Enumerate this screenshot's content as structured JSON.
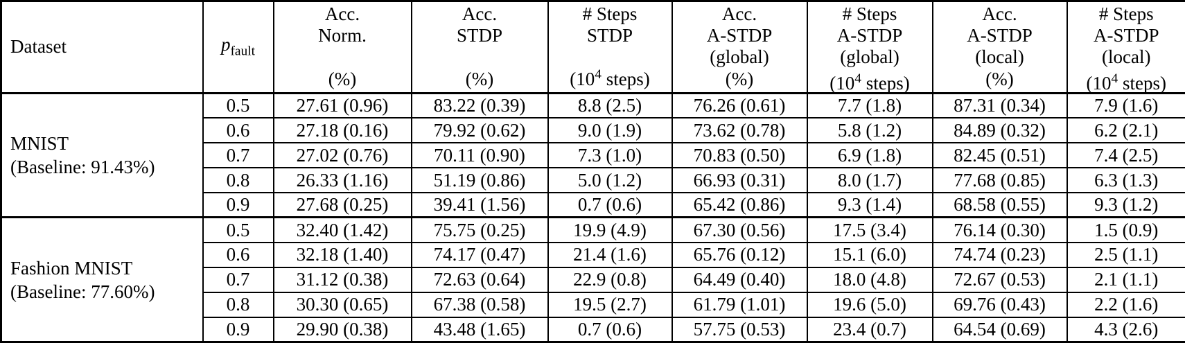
{
  "colors": {
    "text": "#000000",
    "background": "#ffffff",
    "border": "#000000"
  },
  "table": {
    "columns": [
      {
        "id": "dataset",
        "header_lines": [
          "Dataset"
        ],
        "unit": ""
      },
      {
        "id": "p_fault",
        "header_math": {
          "base": "p",
          "sub": "fault"
        },
        "unit": ""
      },
      {
        "id": "acc_norm",
        "header_lines": [
          "Acc.",
          "Norm."
        ],
        "unit": "(%)"
      },
      {
        "id": "acc_stdp",
        "header_lines": [
          "Acc.",
          "STDP"
        ],
        "unit": "(%)"
      },
      {
        "id": "steps_stdp",
        "header_lines": [
          "# Steps",
          "STDP"
        ],
        "unit": "(10^4 steps)"
      },
      {
        "id": "acc_astdp_global",
        "header_lines": [
          "Acc.",
          "A-STDP",
          "(global)"
        ],
        "unit": "(%)"
      },
      {
        "id": "steps_astdp_global",
        "header_lines": [
          "# Steps",
          "A-STDP",
          "(global)"
        ],
        "unit": "(10^4 steps)"
      },
      {
        "id": "acc_astdp_local",
        "header_lines": [
          "Acc.",
          "A-STDP",
          "(local)"
        ],
        "unit": "(%)"
      },
      {
        "id": "steps_astdp_local",
        "header_lines": [
          "# Steps",
          "A-STDP",
          "(local)"
        ],
        "unit": "(10^4 steps)"
      }
    ],
    "sections": [
      {
        "dataset_lines": [
          "MNIST",
          "(Baseline: 91.43%)"
        ],
        "rows": [
          {
            "p_fault": "0.5",
            "acc_norm": "27.61 (0.96)",
            "acc_stdp": "83.22 (0.39)",
            "steps_stdp": "8.8 (2.5)",
            "acc_astdp_global": "76.26 (0.61)",
            "steps_astdp_global": "7.7 (1.8)",
            "acc_astdp_local": "87.31 (0.34)",
            "steps_astdp_local": "7.9 (1.6)"
          },
          {
            "p_fault": "0.6",
            "acc_norm": "27.18 (0.16)",
            "acc_stdp": "79.92 (0.62)",
            "steps_stdp": "9.0 (1.9)",
            "acc_astdp_global": "73.62 (0.78)",
            "steps_astdp_global": "5.8 (1.2)",
            "acc_astdp_local": "84.89 (0.32)",
            "steps_astdp_local": "6.2 (2.1)"
          },
          {
            "p_fault": "0.7",
            "acc_norm": "27.02 (0.76)",
            "acc_stdp": "70.11 (0.90)",
            "steps_stdp": "7.3 (1.0)",
            "acc_astdp_global": "70.83 (0.50)",
            "steps_astdp_global": "6.9 (1.8)",
            "acc_astdp_local": "82.45 (0.51)",
            "steps_astdp_local": "7.4 (2.5)"
          },
          {
            "p_fault": "0.8",
            "acc_norm": "26.33 (1.16)",
            "acc_stdp": "51.19 (0.86)",
            "steps_stdp": "5.0 (1.2)",
            "acc_astdp_global": "66.93 (0.31)",
            "steps_astdp_global": "8.0 (1.7)",
            "acc_astdp_local": "77.68 (0.85)",
            "steps_astdp_local": "6.3 (1.3)"
          },
          {
            "p_fault": "0.9",
            "acc_norm": "27.68 (0.25)",
            "acc_stdp": "39.41 (1.56)",
            "steps_stdp": "0.7 (0.6)",
            "acc_astdp_global": "65.42 (0.86)",
            "steps_astdp_global": "9.3 (1.4)",
            "acc_astdp_local": "68.58 (0.55)",
            "steps_astdp_local": "9.3 (1.2)"
          }
        ]
      },
      {
        "dataset_lines": [
          "Fashion MNIST",
          "(Baseline: 77.60%)"
        ],
        "rows": [
          {
            "p_fault": "0.5",
            "acc_norm": "32.40 (1.42)",
            "acc_stdp": "75.75 (0.25)",
            "steps_stdp": "19.9 (4.9)",
            "acc_astdp_global": "67.30 (0.56)",
            "steps_astdp_global": "17.5 (3.4)",
            "acc_astdp_local": "76.14 (0.30)",
            "steps_astdp_local": "1.5 (0.9)"
          },
          {
            "p_fault": "0.6",
            "acc_norm": "32.18 (1.40)",
            "acc_stdp": "74.17 (0.47)",
            "steps_stdp": "21.4 (1.6)",
            "acc_astdp_global": "65.76 (0.12)",
            "steps_astdp_global": "15.1 (6.0)",
            "acc_astdp_local": "74.74 (0.23)",
            "steps_astdp_local": "2.5 (1.1)"
          },
          {
            "p_fault": "0.7",
            "acc_norm": "31.12 (0.38)",
            "acc_stdp": "72.63 (0.64)",
            "steps_stdp": "22.9 (0.8)",
            "acc_astdp_global": "64.49 (0.40)",
            "steps_astdp_global": "18.0 (4.8)",
            "acc_astdp_local": "72.67 (0.53)",
            "steps_astdp_local": "2.1 (1.1)"
          },
          {
            "p_fault": "0.8",
            "acc_norm": "30.30 (0.65)",
            "acc_stdp": "67.38 (0.58)",
            "steps_stdp": "19.5 (2.7)",
            "acc_astdp_global": "61.79 (1.01)",
            "steps_astdp_global": "19.6 (5.0)",
            "acc_astdp_local": "69.76 (0.43)",
            "steps_astdp_local": "2.2 (1.6)"
          },
          {
            "p_fault": "0.9",
            "acc_norm": "29.90 (0.38)",
            "acc_stdp": "43.48 (1.65)",
            "steps_stdp": "0.7 (0.6)",
            "acc_astdp_global": "57.75 (0.53)",
            "steps_astdp_global": "23.4 (0.7)",
            "acc_astdp_local": "64.54 (0.69)",
            "steps_astdp_local": "4.3 (2.6)"
          }
        ]
      }
    ]
  }
}
